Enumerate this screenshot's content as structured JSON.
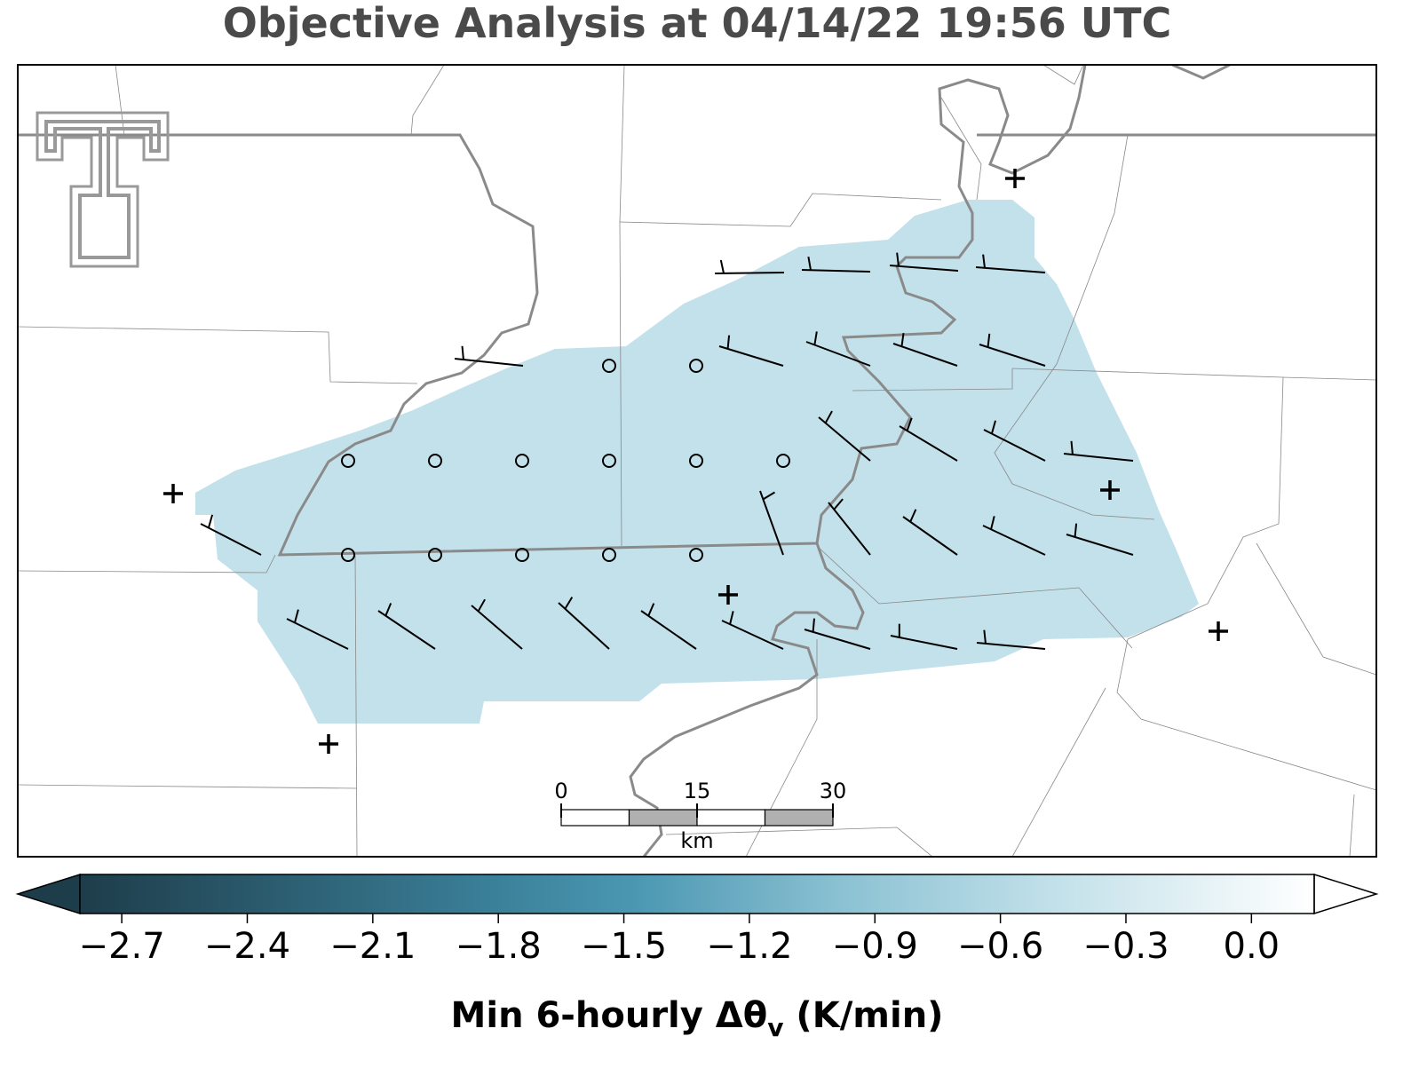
{
  "title": "Objective Analysis at 04/14/22 19:56 UTC",
  "colorbar": {
    "lim": [
      -2.8,
      0.15
    ],
    "ticks": [
      {
        "value": -2.7,
        "label": "−2.7"
      },
      {
        "value": -2.4,
        "label": "−2.4"
      },
      {
        "value": -2.1,
        "label": "−2.1"
      },
      {
        "value": -1.8,
        "label": "−1.8"
      },
      {
        "value": -1.5,
        "label": "−1.5"
      },
      {
        "value": -1.2,
        "label": "−1.2"
      },
      {
        "value": -0.9,
        "label": "−0.9"
      },
      {
        "value": -0.6,
        "label": "−0.6"
      },
      {
        "value": -0.3,
        "label": "−0.3"
      },
      {
        "value": 0.0,
        "label": "0.0"
      }
    ],
    "label": {
      "main": "Min 6-hourly Δθ",
      "subscript": "v",
      "units": " (K/min)"
    }
  },
  "scale_bar": {
    "ticks": [
      0,
      15,
      30
    ],
    "unit": "km"
  }
}
